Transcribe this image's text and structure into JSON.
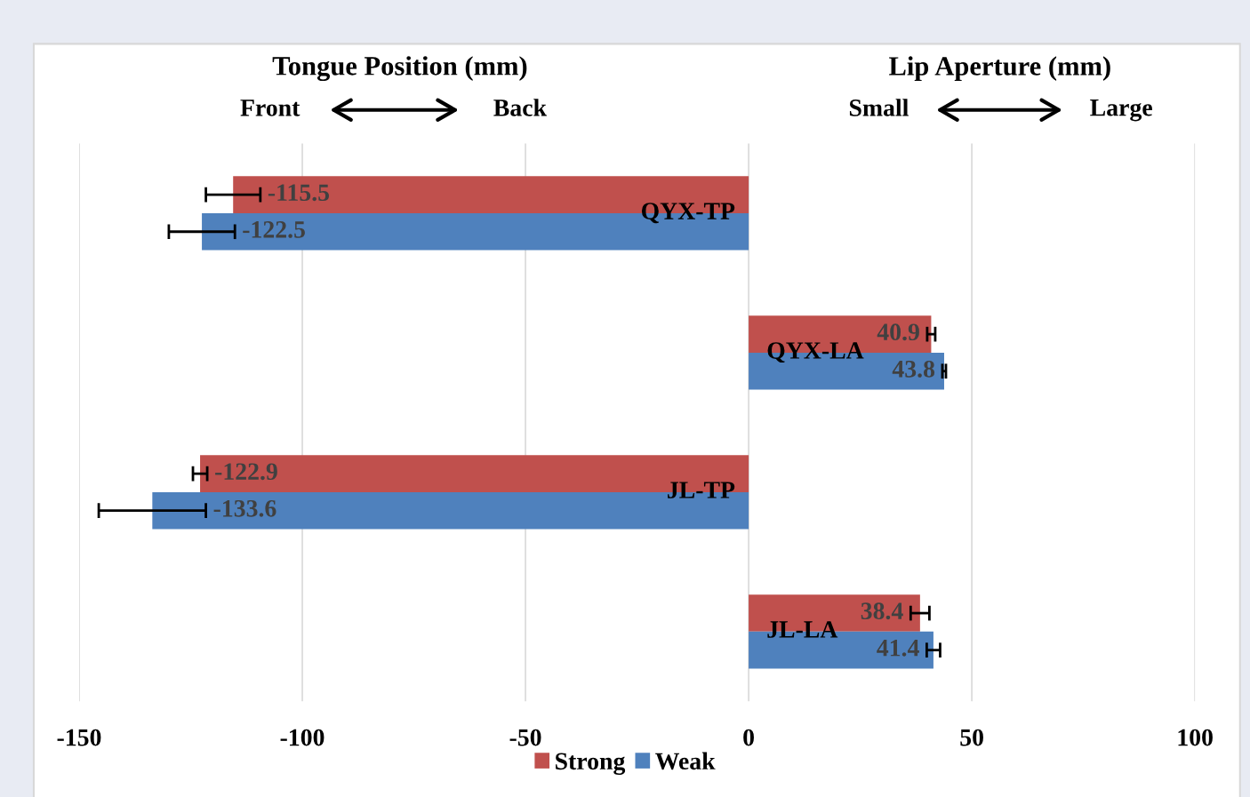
{
  "chart_data": {
    "type": "bar",
    "orientation": "horizontal",
    "categories": [
      "QYX-TP",
      "QYX-LA",
      "JL-TP",
      "JL-LA"
    ],
    "series": [
      {
        "name": "Strong",
        "color": "#c0504d",
        "values": [
          -115.5,
          40.9,
          -122.9,
          38.4
        ],
        "errors": [
          6.1,
          0.9,
          1.6,
          2.1
        ]
      },
      {
        "name": "Weak",
        "color": "#4f81bd",
        "values": [
          -122.5,
          43.8,
          -133.6,
          41.4
        ],
        "errors": [
          7.4,
          0.4,
          12,
          1.5
        ]
      }
    ],
    "xlim": [
      -150,
      100
    ],
    "xticks": [
      -150,
      -100,
      -50,
      0,
      50,
      100
    ],
    "annotations": [
      "Tongue Position (mm)",
      "Front",
      "Back",
      "Lip Aperture (mm)",
      "Small",
      "Large"
    ],
    "data_labels": true,
    "grid": "x",
    "legend": "bottom",
    "tick_labels": "x"
  }
}
